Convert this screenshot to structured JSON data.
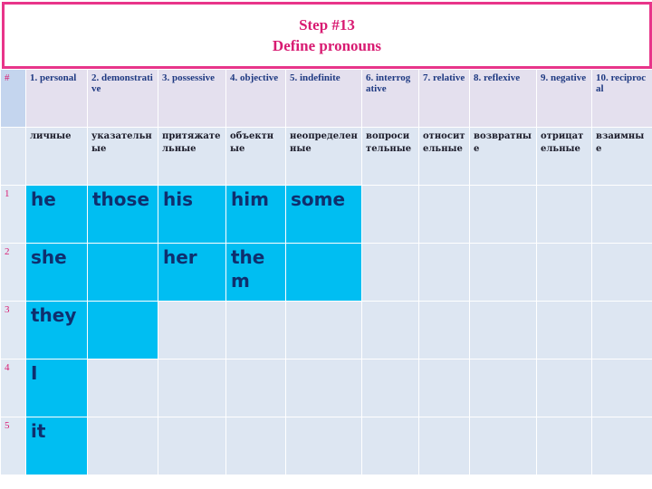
{
  "title": {
    "step": "Step #13",
    "subtitle": "Define pronouns"
  },
  "table": {
    "index_header": "#",
    "headers": [
      "1. personal",
      "2. demonstrative",
      "3. possessive",
      "4. objective",
      "5. indefinite",
      "6. interrogative",
      "7. relative",
      "8. reflexive",
      "9. negative",
      "10. reciprocal"
    ],
    "russian": [
      "личные",
      "указательные",
      "притяжательные",
      "объектные",
      "неопределенные",
      "вопросительные",
      "относительные",
      "возвратные",
      "отрицательные",
      "взаимные"
    ],
    "rows": [
      {
        "num": "1",
        "cells": [
          "he",
          "those",
          "his",
          "him",
          "some",
          "",
          "",
          "",
          "",
          ""
        ]
      },
      {
        "num": "2",
        "cells": [
          "she",
          "",
          "her",
          "them",
          "",
          "",
          "",
          "",
          "",
          ""
        ]
      },
      {
        "num": "3",
        "cells": [
          "they",
          "",
          "",
          "",
          "",
          "",
          "",
          "",
          "",
          ""
        ]
      },
      {
        "num": "4",
        "cells": [
          "I",
          "",
          "",
          "",
          "",
          "",
          "",
          "",
          "",
          ""
        ]
      },
      {
        "num": "5",
        "cells": [
          "it",
          "",
          "",
          "",
          "",
          "",
          "",
          "",
          "",
          ""
        ]
      }
    ],
    "filled_color": "#00bef2",
    "accent_color": "#d81b72",
    "header_text_color": "#1f3a82"
  }
}
